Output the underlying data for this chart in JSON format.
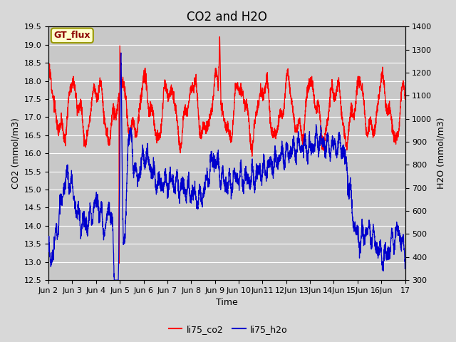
{
  "title": "CO2 and H2O",
  "xlabel": "Time",
  "ylabel_left": "CO2 (mmol/m3)",
  "ylabel_right": "H2O (mmol/m3)",
  "ylim_left": [
    12.5,
    19.5
  ],
  "ylim_right": [
    300,
    1400
  ],
  "x_tick_labels": [
    "Jun 2",
    "Jun 3",
    "Jun 4",
    "Jun 5",
    "Jun 6",
    "Jun 7",
    "Jun 8",
    "Jun 9",
    "Jun 10",
    "Jun11",
    "12Jun",
    "13Jun",
    "14Jun",
    "15Jun",
    "16Jun",
    "17"
  ],
  "background_color": "#d8d8d8",
  "plot_bg_color": "#c8c8c8",
  "legend_label_co2": "li75_co2",
  "legend_label_h2o": "li75_h2o",
  "co2_color": "#ff0000",
  "h2o_color": "#0000cc",
  "annotation_text": "GT_flux",
  "annotation_bg": "#ffffcc",
  "annotation_border": "#999900",
  "grid_color": "#ffffff",
  "title_fontsize": 12,
  "axis_label_fontsize": 9,
  "tick_fontsize": 8,
  "linewidth": 0.9
}
